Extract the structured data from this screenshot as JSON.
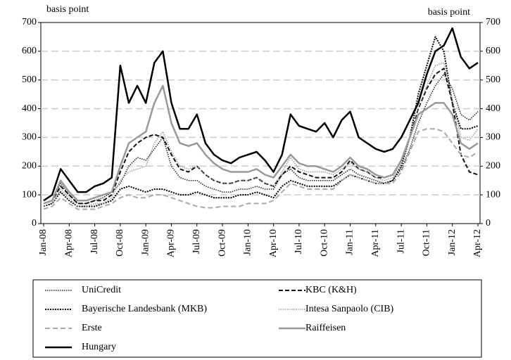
{
  "chart_data": {
    "type": "line",
    "y_label": "basis point",
    "y2_label": "basis point",
    "categories": [
      "Jan-08",
      null,
      null,
      "Apr-08",
      null,
      null,
      "Jul-08",
      null,
      null,
      "Oct-08",
      null,
      null,
      "Jan-09",
      null,
      null,
      "Apr-09",
      null,
      null,
      "Jul-09",
      null,
      null,
      "Oct-09",
      null,
      null,
      "Jan-10",
      null,
      null,
      "Apr-10",
      null,
      null,
      "Jul-10",
      null,
      null,
      "Oct-10",
      null,
      null,
      "Jan-11",
      null,
      null,
      "Apr-11",
      null,
      null,
      "Jul-11",
      null,
      null,
      "Oct-11",
      null,
      null,
      "Jan-12",
      null,
      null,
      "Apr-12"
    ],
    "ylim": [
      0,
      700
    ],
    "yticks": [
      0,
      100,
      200,
      300,
      400,
      500,
      600,
      700
    ],
    "y2lim": [
      0,
      700
    ],
    "y2ticks": [
      0,
      100,
      200,
      300,
      400,
      500,
      600,
      700
    ],
    "grid": true,
    "series": [
      {
        "name": "UniCredit",
        "color": "#222222",
        "width": 1.5,
        "dash": "1.5,1.5",
        "values": [
          70,
          80,
          140,
          100,
          70,
          70,
          80,
          90,
          110,
          140,
          200,
          230,
          220,
          260,
          300,
          200,
          160,
          150,
          150,
          130,
          120,
          110,
          110,
          120,
          120,
          130,
          120,
          120,
          170,
          190,
          160,
          150,
          150,
          150,
          150,
          170,
          190,
          170,
          160,
          150,
          140,
          150,
          190,
          260,
          350,
          420,
          480,
          520,
          470,
          380,
          360,
          390
        ]
      },
      {
        "name": "KBC (K&H)",
        "color": "#111111",
        "width": 2,
        "dash": "6,3",
        "values": [
          70,
          80,
          130,
          100,
          70,
          70,
          80,
          80,
          100,
          180,
          250,
          280,
          300,
          310,
          300,
          240,
          190,
          180,
          200,
          170,
          150,
          140,
          140,
          150,
          150,
          160,
          140,
          130,
          170,
          200,
          180,
          170,
          160,
          160,
          160,
          180,
          220,
          190,
          180,
          160,
          160,
          170,
          220,
          300,
          400,
          470,
          520,
          540,
          420,
          240,
          180,
          170
        ]
      },
      {
        "name": "Bayerische Landesbank (MKB)",
        "color": "#000000",
        "width": 2,
        "dash": "2,1.5",
        "values": [
          60,
          70,
          110,
          80,
          60,
          60,
          60,
          70,
          80,
          120,
          130,
          120,
          110,
          120,
          120,
          110,
          100,
          100,
          110,
          100,
          90,
          90,
          90,
          100,
          100,
          110,
          100,
          90,
          130,
          150,
          140,
          130,
          130,
          130,
          130,
          150,
          170,
          160,
          150,
          140,
          140,
          150,
          200,
          300,
          450,
          550,
          650,
          600,
          420,
          330,
          330,
          340
        ]
      },
      {
        "name": "Intesa Sanpaolo (CIB)",
        "color": "#999999",
        "width": 1.5,
        "dash": "1.5,1.5",
        "values": [
          60,
          70,
          120,
          90,
          60,
          60,
          70,
          70,
          90,
          150,
          180,
          190,
          200,
          280,
          320,
          250,
          200,
          190,
          200,
          170,
          150,
          140,
          140,
          150,
          150,
          160,
          140,
          130,
          180,
          230,
          190,
          180,
          180,
          180,
          170,
          190,
          210,
          190,
          180,
          160,
          150,
          160,
          210,
          300,
          400,
          480,
          550,
          560,
          430,
          300,
          290,
          330
        ]
      },
      {
        "name": "Erste",
        "color": "#aaaaaa",
        "width": 2,
        "dash": "7,4",
        "values": [
          50,
          60,
          90,
          70,
          50,
          50,
          50,
          60,
          70,
          90,
          100,
          90,
          90,
          100,
          100,
          90,
          80,
          70,
          60,
          55,
          55,
          60,
          60,
          60,
          70,
          70,
          70,
          80,
          110,
          140,
          130,
          120,
          120,
          120,
          120,
          150,
          170,
          160,
          150,
          140,
          140,
          140,
          180,
          250,
          320,
          330,
          330,
          320,
          280,
          240,
          230,
          250
        ]
      },
      {
        "name": "Raiffeisen",
        "color": "#999999",
        "width": 2.5,
        "dash": "",
        "values": [
          70,
          80,
          150,
          110,
          80,
          80,
          90,
          100,
          110,
          200,
          280,
          300,
          320,
          420,
          480,
          350,
          280,
          270,
          280,
          240,
          210,
          190,
          180,
          180,
          180,
          190,
          170,
          160,
          200,
          240,
          210,
          200,
          200,
          190,
          180,
          200,
          230,
          200,
          190,
          170,
          160,
          170,
          220,
          300,
          380,
          400,
          420,
          420,
          380,
          280,
          260,
          280
        ]
      },
      {
        "name": "Hungary",
        "color": "#000000",
        "width": 2.5,
        "dash": "",
        "values": [
          80,
          100,
          190,
          150,
          110,
          110,
          130,
          140,
          160,
          550,
          420,
          480,
          420,
          560,
          600,
          420,
          330,
          330,
          380,
          280,
          240,
          220,
          210,
          230,
          240,
          250,
          220,
          180,
          240,
          380,
          340,
          330,
          320,
          350,
          300,
          360,
          390,
          300,
          280,
          260,
          250,
          260,
          300,
          360,
          420,
          520,
          600,
          620,
          680,
          580,
          540,
          560
        ]
      }
    ]
  }
}
